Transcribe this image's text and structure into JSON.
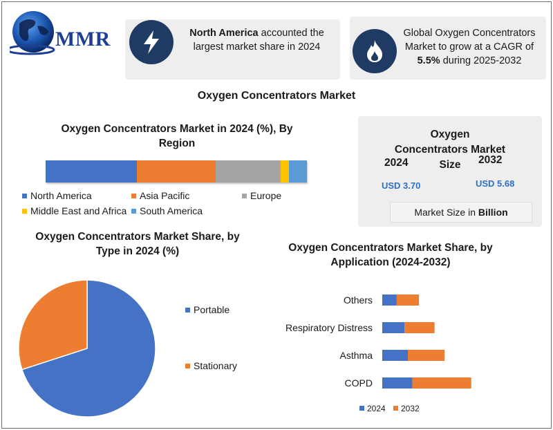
{
  "logo": {
    "text": "MMR"
  },
  "cards": {
    "region": {
      "strong": "North America",
      "rest": " accounted the largest market share in 2024"
    },
    "cagr": {
      "pre": "Global Oxygen Concentrators Market to grow at a CAGR of ",
      "strong": "5.5%",
      "post": " during 2025-2032"
    }
  },
  "main_title": "Oxygen Concentrators Market",
  "colors": {
    "blue": "#4472c4",
    "orange": "#ed7d31",
    "gray": "#a5a5a5",
    "yellow": "#ffc000",
    "lightblue": "#5b9bd5",
    "dark_navy": "#1f3b63",
    "value_blue": "#2e6fc8"
  },
  "icons": {
    "card1": "lightning-icon",
    "card2": "flame-icon",
    "logo": "globe-icon"
  },
  "market_size": {
    "title": "Oxygen Concentrators Market Size",
    "year_a": "2024",
    "value_a": "USD 3.70",
    "year_b": "2032",
    "value_b": "USD 5.68",
    "unit_pre": "Market Size in ",
    "unit_strong": "Billion"
  },
  "chart_data": [
    {
      "type": "bar",
      "orientation": "horizontal-stacked-100",
      "title": "Oxygen Concentrators Market in 2024 (%), By Region",
      "series": [
        {
          "name": "North America",
          "value": 35,
          "color": "#4472c4"
        },
        {
          "name": "Asia Pacific",
          "value": 30,
          "color": "#ed7d31"
        },
        {
          "name": "Europe",
          "value": 25,
          "color": "#a5a5a5"
        },
        {
          "name": "Middle East and Africa",
          "value": 3,
          "color": "#ffc000"
        },
        {
          "name": "South America",
          "value": 7,
          "color": "#5b9bd5"
        }
      ]
    },
    {
      "type": "pie",
      "title": "Oxygen Concentrators  Market Share, by Type in 2024 (%)",
      "slices": [
        {
          "name": "Portable",
          "value": 70,
          "color": "#4472c4"
        },
        {
          "name": "Stationary",
          "value": 30,
          "color": "#ed7d31"
        }
      ],
      "legend": "right"
    },
    {
      "type": "bar",
      "orientation": "horizontal-stacked",
      "title": "Oxygen Concentrators Market Share, by Application (2024-2032)",
      "categories": [
        "Others",
        "Respiratory Distress",
        "Asthma",
        "COPD"
      ],
      "series": [
        {
          "name": "2024",
          "values": [
            1.3,
            2.0,
            2.3,
            2.7
          ],
          "color": "#4472c4"
        },
        {
          "name": "2032",
          "values": [
            2.0,
            2.7,
            3.3,
            5.3
          ],
          "color": "#ed7d31"
        }
      ],
      "xlim": [
        0,
        11
      ],
      "legend": "bottom"
    }
  ]
}
